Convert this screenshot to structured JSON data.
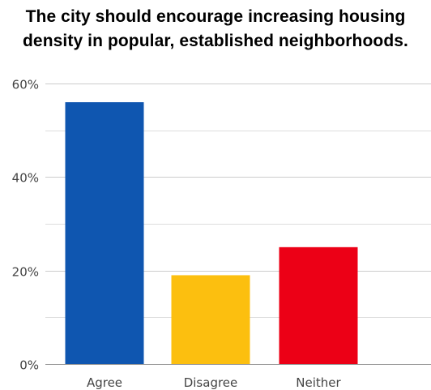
{
  "chart_data": {
    "type": "bar",
    "title_lines": [
      "The city should encourage increasing housing",
      "density in popular, established neighborhoods."
    ],
    "categories": [
      "Agree",
      "Disagree",
      "Neither"
    ],
    "values": [
      56,
      19,
      25
    ],
    "colors": [
      "#0f56b0",
      "#fcbf0f",
      "#ec0016"
    ],
    "ylim": [
      0,
      60
    ],
    "yticks": [
      {
        "value": 0,
        "label": "0%"
      },
      {
        "value": 20,
        "label": "20%"
      },
      {
        "value": 40,
        "label": "40%"
      },
      {
        "value": 60,
        "label": "60%"
      }
    ],
    "minor_gridlines": [
      10,
      30,
      50
    ],
    "grid": true,
    "legend": "none"
  }
}
